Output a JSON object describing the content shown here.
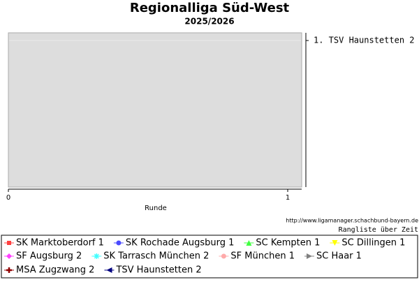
{
  "chart_data": {
    "type": "line",
    "title": "Regionalliga Süd-West",
    "subtitle": "2025/2026",
    "x_label": "Runde",
    "xlim": [
      0,
      1.05
    ],
    "xticks": [
      0,
      1
    ],
    "ylim": [
      10.5,
      0.5
    ],
    "yticks": [
      {
        "value": 1,
        "label": "1. TSV Haunstetten 2"
      }
    ],
    "y_axis_side": "right",
    "grid": true,
    "source": "http://www.ligamanager.schachbund-bayern.de",
    "caption": "Rangliste über Zeit",
    "series": [
      {
        "name": "SK Marktoberdorf 1",
        "color": "#ff4040",
        "marker": "square"
      },
      {
        "name": "SK Rochade Augsburg 1",
        "color": "#4a4aff",
        "marker": "circle"
      },
      {
        "name": "SC Kempten 1",
        "color": "#40ff40",
        "marker": "triangle-up"
      },
      {
        "name": "SC Dillingen 1",
        "color": "#ffff00",
        "marker": "triangle-down"
      },
      {
        "name": "SF Augsburg 2",
        "color": "#ff40ff",
        "marker": "diamond"
      },
      {
        "name": "SK Tarrasch München 2",
        "color": "#40ffff",
        "marker": "star"
      },
      {
        "name": "SF München 1",
        "color": "#ffaaaa",
        "marker": "circle"
      },
      {
        "name": "SC Haar 1",
        "color": "#808080",
        "marker": "triangle-right"
      },
      {
        "name": "MSA Zugzwang 2",
        "color": "#900000",
        "marker": "cross"
      },
      {
        "name": "TSV Haunstetten 2",
        "color": "#000080",
        "marker": "triangle-left"
      }
    ]
  }
}
